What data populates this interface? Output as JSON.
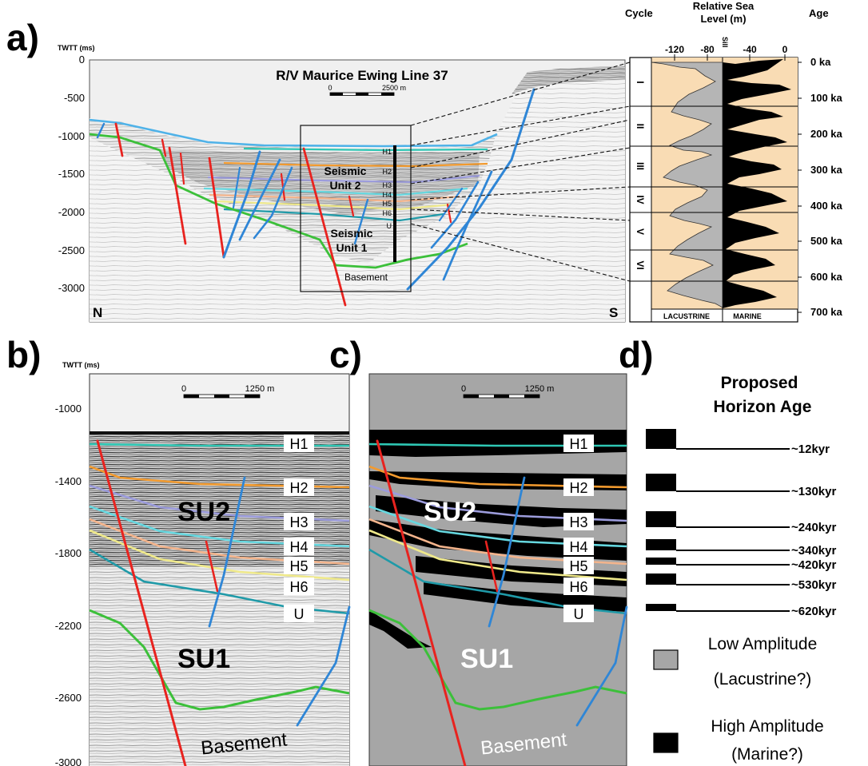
{
  "panel_a": {
    "panel_letter": "a)",
    "axis_unit": "TWTT (ms)",
    "y_ticks": [
      "0",
      "-500",
      "-1000",
      "-1500",
      "-2000",
      "-2500",
      "-3000"
    ],
    "line_title": "R/V Maurice Ewing Line 37",
    "scale_zero": "0",
    "scale_end": "2500 m",
    "unit_labels": [
      "Seismic",
      "Unit 2",
      "Seismic",
      "Unit 1"
    ],
    "horizons": [
      "H1",
      "H2",
      "H3",
      "H4",
      "H5",
      "H6",
      "U"
    ],
    "basement": "Basement",
    "north": "N",
    "south": "S"
  },
  "sea_level": {
    "col_cycle": "Cycle",
    "col_rsl_1": "Relative Sea",
    "col_rsl_2": "Level (m)",
    "col_age": "Age",
    "sill": "Sill",
    "x_ticks": [
      "-120",
      "-80",
      "-40",
      "0"
    ],
    "cycles": [
      "I",
      "II",
      "III",
      "IV",
      "V",
      "VI"
    ],
    "ages": [
      "0 ka",
      "100 ka",
      "200 ka",
      "300 ka",
      "400 ka",
      "500 ka",
      "600 ka",
      "700 ka"
    ],
    "left_label": "LACUSTRINE",
    "right_label": "MARINE"
  },
  "panel_b": {
    "panel_letter": "b)",
    "axis_unit": "TWTT (ms)",
    "y_ticks": [
      "-1000",
      "-1400",
      "-1800",
      "-2200",
      "-2600",
      "-3000"
    ],
    "scale_zero": "0",
    "scale_end": "1250 m",
    "horizons": [
      "H1",
      "H2",
      "H3",
      "H4",
      "H5",
      "H6",
      "U"
    ],
    "su2": "SU2",
    "su1": "SU1",
    "basement": "Basement"
  },
  "panel_c": {
    "panel_letter": "c)",
    "scale_zero": "0",
    "scale_end": "1250 m",
    "horizons": [
      "H1",
      "H2",
      "H3",
      "H4",
      "H5",
      "H6",
      "U"
    ],
    "su2": "SU2",
    "su1": "SU1",
    "basement": "Basement"
  },
  "panel_d": {
    "panel_letter": "d)",
    "title_1": "Proposed",
    "title_2": "Horizon Age",
    "ages": [
      "~12kyr",
      "~130kyr",
      "~240kyr",
      "~340kyr",
      "~420kyr",
      "~530kyr",
      "~620kyr"
    ],
    "legend_low_1": "Low Amplitude",
    "legend_low_2": "(Lacustrine?)",
    "legend_high_1": "High Amplitude",
    "legend_high_2": "(Marine?)"
  },
  "colors": {
    "fault_red": "#e8231f",
    "fault_blue": "#2f86d6",
    "basement_green": "#3cc03a",
    "h1_teal": "#2ec7b4",
    "h2_orange": "#f29a2e",
    "h3_lavender": "#9c9cdc",
    "h4_cyan": "#66d8e0",
    "h5_peach": "#f3b48c",
    "h6_yellow": "#efe98a",
    "u_teal": "#1f9aa8",
    "sea_level_bg": "#f9dcb4"
  }
}
